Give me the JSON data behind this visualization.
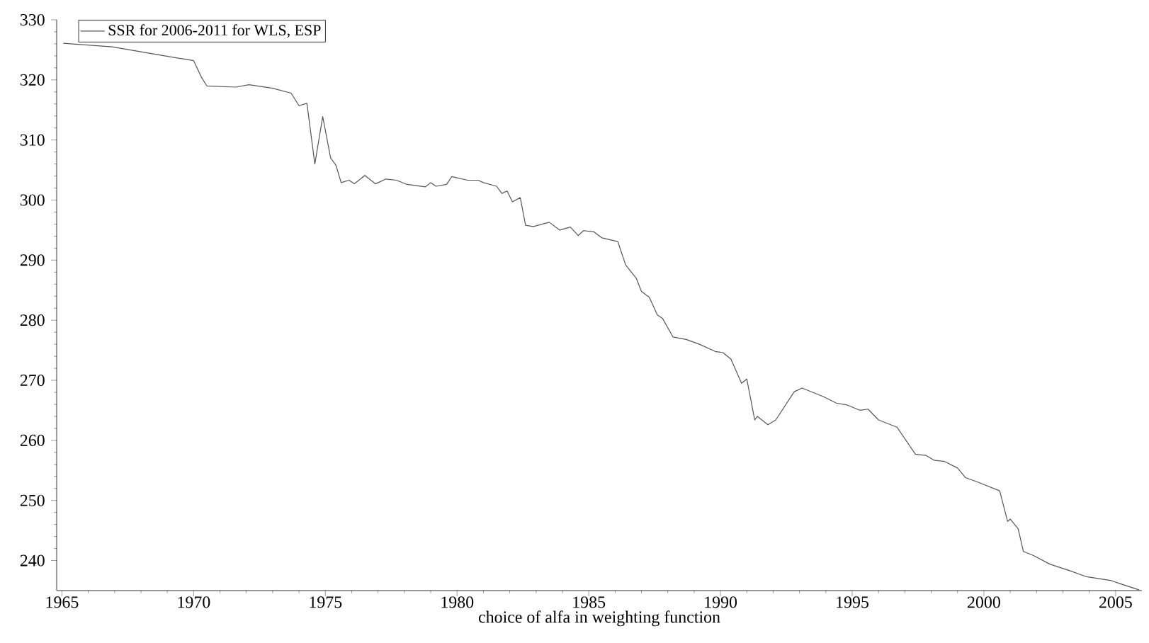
{
  "chart_data": {
    "type": "line",
    "xlabel": "choice of alfa in weighting function",
    "legend": "top left",
    "grid": false,
    "marker": "none",
    "line_style": "solid",
    "xlim": [
      1964.8,
      2006.0
    ],
    "ylim": [
      235,
      330
    ],
    "xticks": [
      1965,
      1970,
      1975,
      1980,
      1985,
      1990,
      1995,
      2000,
      2005
    ],
    "yticks": [
      240,
      250,
      260,
      270,
      280,
      290,
      300,
      310,
      320,
      330
    ],
    "series": [
      {
        "name": "SSR for 2006-2011 for WLS, ESP",
        "color": "#555555",
        "x": [
          1965.05,
          1966.9,
          1968.9,
          1970.0,
          1970.3,
          1970.5,
          1971.6,
          1972.1,
          1973.0,
          1973.7,
          1974.0,
          1974.3,
          1974.6,
          1974.9,
          1975.2,
          1975.4,
          1975.6,
          1975.9,
          1976.1,
          1976.5,
          1976.9,
          1977.3,
          1977.7,
          1978.1,
          1978.8,
          1979.0,
          1979.2,
          1979.6,
          1979.8,
          1980.4,
          1980.8,
          1981.0,
          1981.5,
          1981.7,
          1981.9,
          1982.1,
          1982.4,
          1982.6,
          1982.9,
          1983.5,
          1983.9,
          1984.3,
          1984.6,
          1984.8,
          1985.2,
          1985.5,
          1986.1,
          1986.4,
          1986.8,
          1987.0,
          1987.3,
          1987.6,
          1987.8,
          1988.2,
          1988.7,
          1989.2,
          1989.8,
          1990.1,
          1990.4,
          1990.8,
          1991.0,
          1991.3,
          1991.4,
          1991.8,
          1992.1,
          1992.8,
          1993.1,
          1993.9,
          1994.4,
          1994.8,
          1995.3,
          1995.6,
          1996.0,
          1996.7,
          1997.4,
          1997.8,
          1998.1,
          1998.5,
          1999.0,
          1999.3,
          1999.8,
          2000.6,
          2000.9,
          2001.0,
          2001.3,
          2001.5,
          2001.9,
          2002.5,
          2003.2,
          2003.9,
          2004.8,
          2005.2,
          2005.9
        ],
        "values": [
          326.1,
          325.5,
          324.0,
          323.2,
          320.4,
          319.0,
          318.8,
          319.2,
          318.6,
          317.8,
          315.7,
          316.1,
          306.0,
          313.9,
          307.0,
          305.8,
          302.9,
          303.3,
          302.7,
          304.1,
          302.7,
          303.5,
          303.3,
          302.6,
          302.2,
          302.9,
          302.3,
          302.6,
          303.9,
          303.3,
          303.3,
          302.9,
          302.3,
          301.1,
          301.5,
          299.7,
          300.4,
          295.8,
          295.6,
          296.3,
          295.0,
          295.5,
          294.1,
          294.9,
          294.7,
          293.7,
          293.1,
          289.2,
          287.0,
          284.8,
          283.8,
          280.9,
          280.3,
          277.2,
          276.8,
          276.0,
          274.8,
          274.6,
          273.5,
          269.5,
          270.2,
          263.4,
          264.0,
          262.6,
          263.4,
          268.1,
          268.7,
          267.3,
          266.2,
          265.9,
          265.0,
          265.2,
          263.4,
          262.2,
          257.7,
          257.5,
          256.7,
          256.5,
          255.4,
          253.8,
          253.0,
          251.6,
          246.5,
          246.9,
          245.3,
          241.5,
          240.8,
          239.4,
          238.4,
          237.3,
          236.7,
          236.1,
          235.1
        ]
      }
    ]
  }
}
